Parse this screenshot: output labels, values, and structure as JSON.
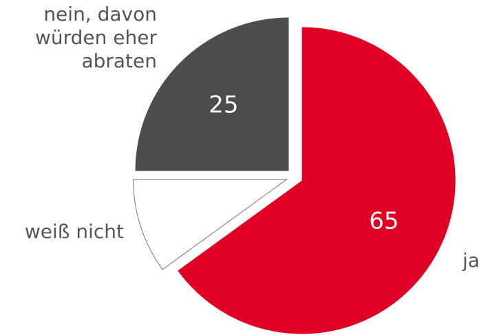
{
  "chart_data": {
    "type": "pie",
    "categories": [
      "ja",
      "weiß nicht",
      "nein, davon\nwürden eher\nabraten"
    ],
    "values": [
      65,
      10,
      25
    ],
    "value_labels": [
      "65",
      null,
      "25"
    ],
    "colors": [
      "#e00024",
      "#ffffff",
      "#4d4d4d"
    ],
    "start_angle": 0,
    "direction": "clockwise",
    "exploded": true
  }
}
